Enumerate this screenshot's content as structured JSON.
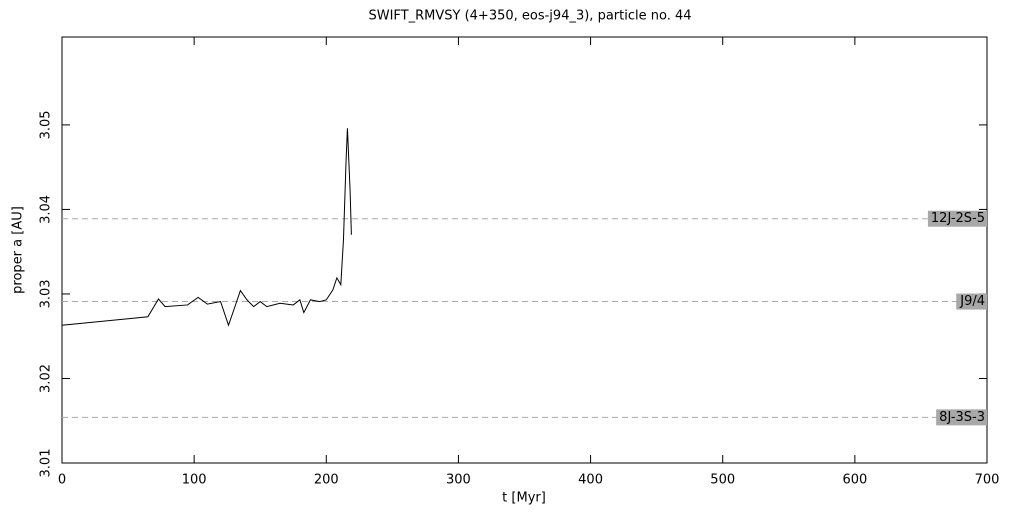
{
  "chart_data": {
    "type": "line",
    "title": "SWIFT_RMVSY (4+350, eos-j94_3), particle no. 44",
    "xlabel": "t [Myr]",
    "ylabel": "proper a [AU]",
    "x": [
      0,
      65,
      73,
      78,
      95,
      103,
      110,
      120,
      126,
      130,
      135,
      140,
      145,
      150,
      155,
      165,
      175,
      180,
      183,
      188,
      195,
      200,
      205,
      208,
      211,
      213,
      215,
      216,
      218,
      219
    ],
    "series": [
      {
        "color": "#000000",
        "values": [
          3.0263,
          3.0273,
          3.0294,
          3.0285,
          3.0287,
          3.0296,
          3.0288,
          3.0291,
          3.0263,
          3.0281,
          3.0304,
          3.0293,
          3.0285,
          3.0291,
          3.0285,
          3.0289,
          3.0287,
          3.0293,
          3.0278,
          3.0293,
          3.0291,
          3.0293,
          3.0305,
          3.0319,
          3.0311,
          3.0364,
          3.0459,
          3.0496,
          3.0423,
          3.037
        ]
      }
    ],
    "xlim": [
      0,
      700
    ],
    "xticks": [
      0,
      100,
      200,
      300,
      400,
      500,
      600,
      700
    ],
    "ylim": [
      3.01,
      3.0604
    ],
    "yticks": [
      3.01,
      3.02,
      3.03,
      3.04,
      3.05
    ],
    "annotations": [
      {
        "label": "12J-2S-5",
        "value": 3.0389
      },
      {
        "label": "J9/4",
        "value": 3.0291
      },
      {
        "label": "8J-3S-3",
        "value": 3.0154
      }
    ]
  }
}
